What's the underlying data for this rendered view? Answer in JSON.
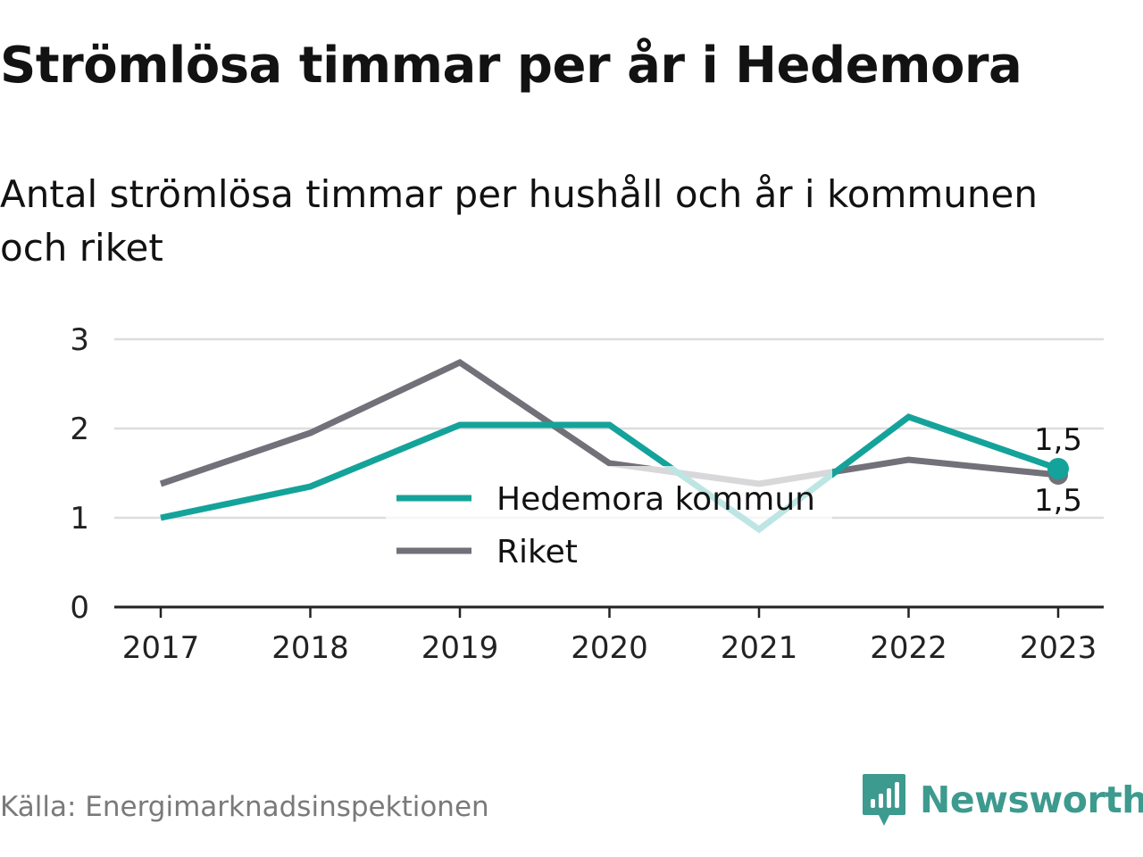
{
  "title": "Strömlösa timmar per år i Hedemora",
  "subtitle": "Antal strömlösa timmar per hushåll och år i kommunen och riket",
  "source": "Källa: Energimarknadsinspektionen",
  "brand": {
    "name": "Newsworthy",
    "icon": "newsworthy-logo-icon",
    "color": "#3d9a8e"
  },
  "chart_data": {
    "type": "line",
    "categories": [
      "2017",
      "2018",
      "2019",
      "2020",
      "2021",
      "2022",
      "2023"
    ],
    "series": [
      {
        "name": "Hedemora kommun",
        "color": "#14a39a",
        "values": [
          1.0,
          1.35,
          2.04,
          2.04,
          0.87,
          2.13,
          1.55
        ],
        "end_label": "1,5"
      },
      {
        "name": "Riket",
        "color": "#727078",
        "values": [
          1.38,
          1.95,
          2.74,
          1.61,
          1.38,
          1.65,
          1.48
        ],
        "end_label": "1,5"
      }
    ],
    "yticks": [
      "0",
      "1",
      "2",
      "3"
    ],
    "ylim": [
      0,
      3
    ],
    "grid": true,
    "legend": "center"
  }
}
